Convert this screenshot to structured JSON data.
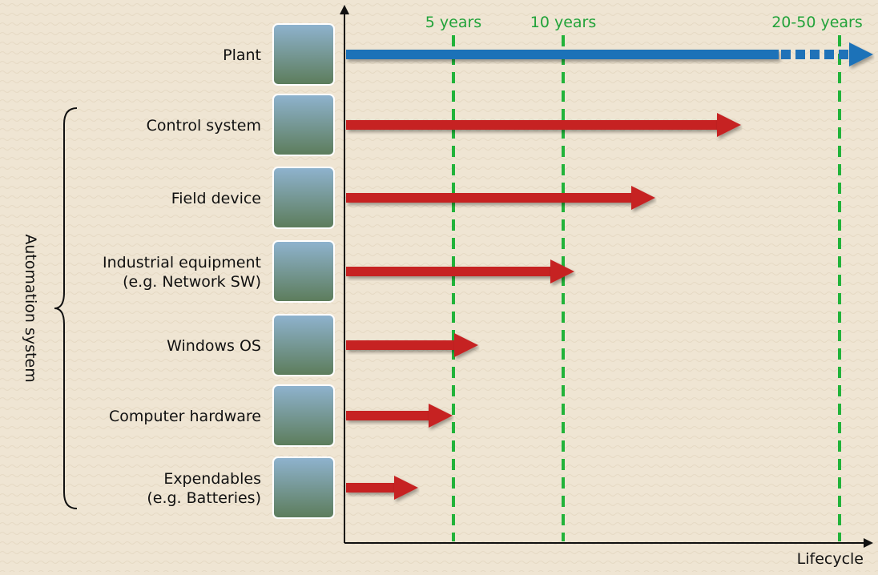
{
  "markers": [
    "5 years",
    "10 years",
    "20-50 years"
  ],
  "axis_label": "Lifecycle",
  "group_label": "Automation system",
  "rows": [
    {
      "lines": [
        "Plant"
      ]
    },
    {
      "lines": [
        "Control system"
      ]
    },
    {
      "lines": [
        "Field device"
      ]
    },
    {
      "lines": [
        "Industrial equipment",
        "(e.g. Network SW)"
      ]
    },
    {
      "lines": [
        "Windows OS"
      ]
    },
    {
      "lines": [
        "Computer hardware"
      ]
    },
    {
      "lines": [
        "Expendables",
        "(e.g. Batteries)"
      ]
    }
  ]
}
